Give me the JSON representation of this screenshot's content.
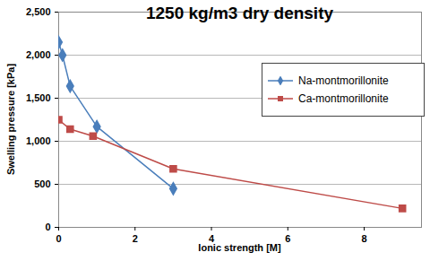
{
  "chart_data": {
    "type": "line",
    "title": "1250 kg/m3 dry density",
    "x_label": "Ionic strength [M]",
    "y_label": "Swelling pressure [kPa]",
    "series": [
      {
        "name": "Na-montmorillonite",
        "color": "#4a7ebb",
        "marker": "diamond",
        "x": [
          0,
          0.1,
          0.3,
          1,
          3
        ],
        "values": [
          2150,
          2000,
          1640,
          1170,
          450
        ]
      },
      {
        "name": "Ca-montmorillonite",
        "color": "#be4b48",
        "marker": "square",
        "x": [
          0,
          0.3,
          0.9,
          3,
          9
        ],
        "values": [
          1250,
          1140,
          1060,
          680,
          220
        ]
      }
    ],
    "xlim": [
      0,
      9.5
    ],
    "xticks": [
      0,
      2,
      4,
      6,
      8
    ],
    "ylim": [
      0,
      2500
    ],
    "yticks": [
      0,
      500,
      1000,
      1500,
      2000,
      2500
    ],
    "grid": true,
    "legend": "top-right"
  }
}
